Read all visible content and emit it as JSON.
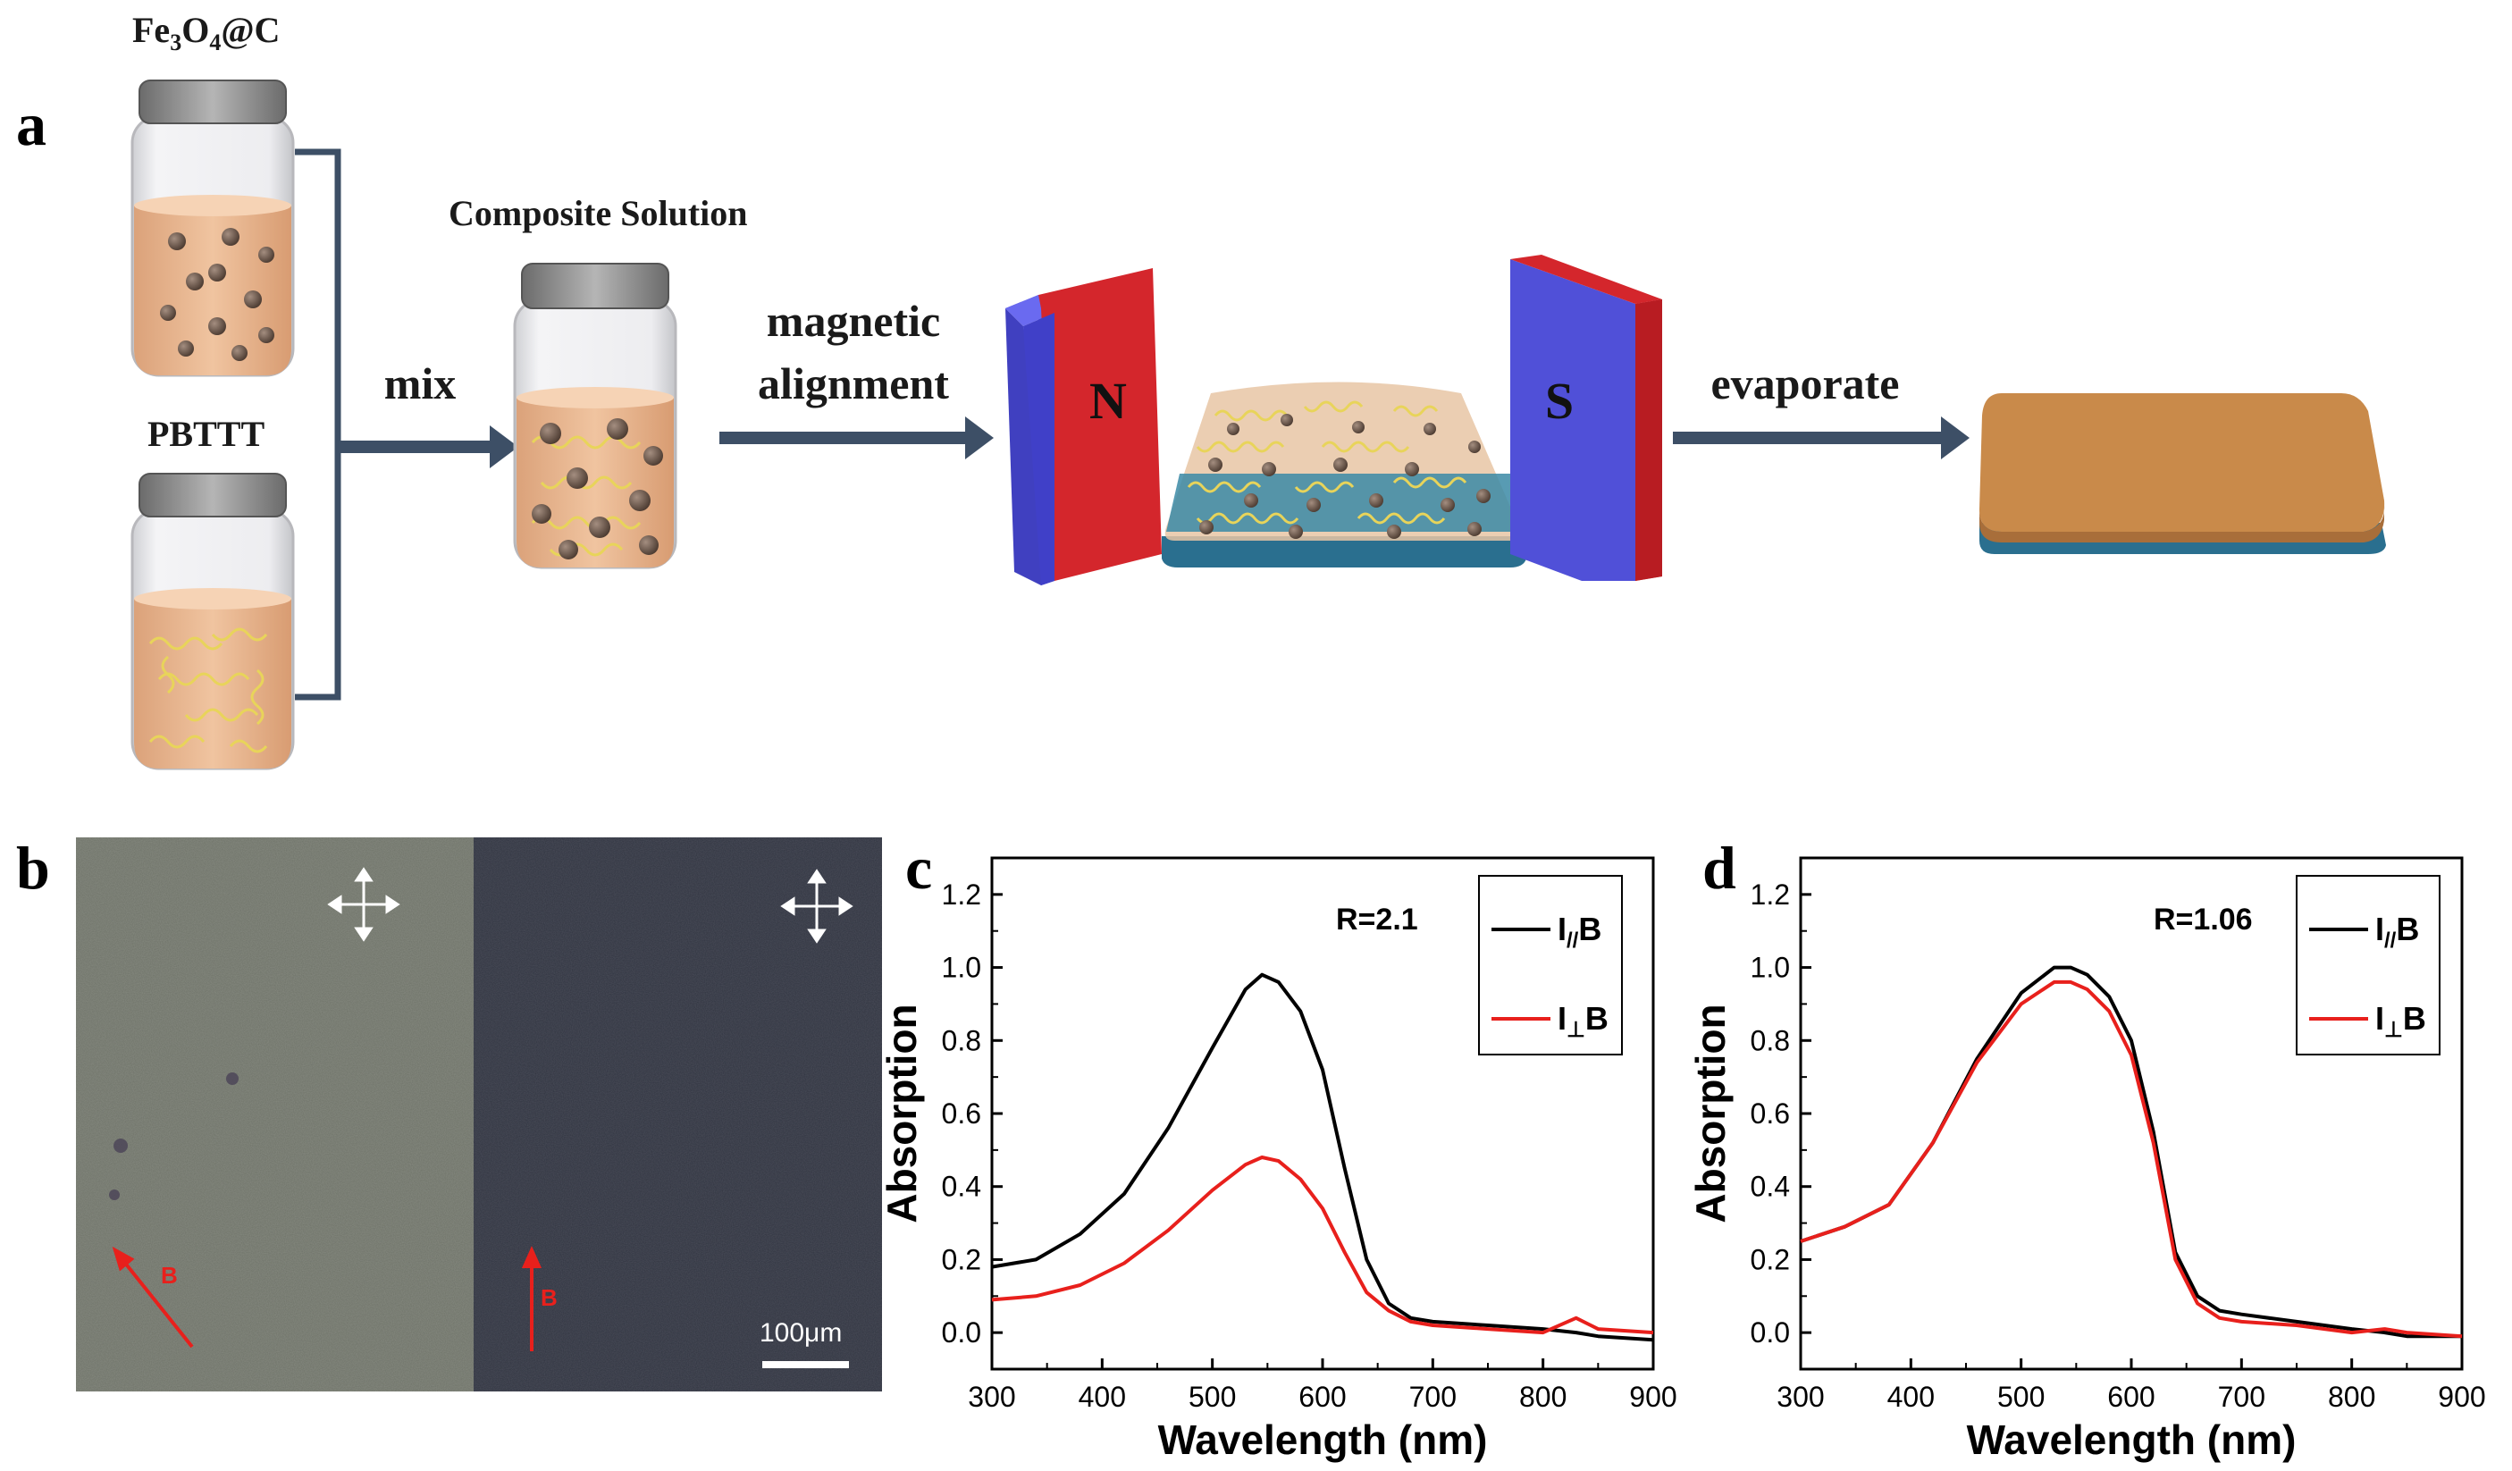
{
  "panel_a": {
    "letter": "a",
    "vial_top_label_main": "Fe",
    "vial_top_label_sub1": "3",
    "vial_top_label_mid": "O",
    "vial_top_label_sub2": "4",
    "vial_top_label_end": "@C",
    "vial_bottom_label": "PBTTT",
    "composite_label": "Composite Solution",
    "step_mix": "mix",
    "step_magnetic_1": "magnetic",
    "step_magnetic_2": "alignment",
    "magnet_n": "N",
    "magnet_s": "S",
    "step_evaporate": "evaporate",
    "colors": {
      "solution": "#e9b68a",
      "arrow": "#3d4f66",
      "magnet_red": "#d4262c",
      "magnet_blue": "#5050d8",
      "film": "#c98a4a",
      "substrate": "#2a6f8f"
    }
  },
  "panel_b": {
    "letter": "b",
    "scale_bar": "100μm",
    "field_label_left": "B",
    "field_label_right": "B"
  },
  "panel_c": {
    "letter": "c",
    "annotation": "R=2.1",
    "legend": [
      {
        "name_main": "I",
        "name_sub": "//",
        "name_end": "B",
        "color": "#000000"
      },
      {
        "name_main": "I",
        "name_sub": "⊥",
        "name_end": "B",
        "color": "#e8201c"
      }
    ],
    "xlabel": "Wavelength (nm)",
    "ylabel": "Absorption",
    "xticks": [
      "300",
      "400",
      "500",
      "600",
      "700",
      "800",
      "900"
    ],
    "yticks": [
      "0.0",
      "0.2",
      "0.4",
      "0.6",
      "0.8",
      "1.0",
      "1.2"
    ]
  },
  "panel_d": {
    "letter": "d",
    "annotation": "R=1.06",
    "legend": [
      {
        "name_main": "I",
        "name_sub": "//",
        "name_end": "B",
        "color": "#000000"
      },
      {
        "name_main": "I",
        "name_sub": "⊥",
        "name_end": "B",
        "color": "#e8201c"
      }
    ],
    "xlabel": "Wavelength (nm)",
    "ylabel": "Absorption",
    "xticks": [
      "300",
      "400",
      "500",
      "600",
      "700",
      "800",
      "900"
    ],
    "yticks": [
      "0.0",
      "0.2",
      "0.4",
      "0.6",
      "0.8",
      "1.0",
      "1.2"
    ]
  },
  "chart_data": [
    {
      "panel": "c",
      "type": "line",
      "xlabel": "Wavelength (nm)",
      "ylabel": "Absorption",
      "xlim": [
        300,
        900
      ],
      "ylim": [
        -0.1,
        1.3
      ],
      "x": [
        300,
        340,
        380,
        420,
        460,
        500,
        530,
        545,
        560,
        580,
        600,
        620,
        640,
        660,
        680,
        700,
        750,
        800,
        830,
        850,
        900
      ],
      "series": [
        {
          "name": "I//B",
          "color": "#000000",
          "values": [
            0.18,
            0.2,
            0.27,
            0.38,
            0.56,
            0.78,
            0.94,
            0.98,
            0.96,
            0.88,
            0.72,
            0.45,
            0.2,
            0.08,
            0.04,
            0.03,
            0.02,
            0.01,
            0.0,
            -0.01,
            -0.02
          ]
        },
        {
          "name": "I⊥B",
          "color": "#e8201c",
          "values": [
            0.09,
            0.1,
            0.13,
            0.19,
            0.28,
            0.39,
            0.46,
            0.48,
            0.47,
            0.42,
            0.34,
            0.22,
            0.11,
            0.06,
            0.03,
            0.02,
            0.01,
            0.0,
            0.04,
            0.01,
            0.0
          ]
        }
      ]
    },
    {
      "panel": "d",
      "type": "line",
      "xlabel": "Wavelength (nm)",
      "ylabel": "Absorption",
      "xlim": [
        300,
        900
      ],
      "ylim": [
        -0.1,
        1.3
      ],
      "x": [
        300,
        340,
        380,
        420,
        460,
        500,
        530,
        545,
        560,
        580,
        600,
        620,
        640,
        660,
        680,
        700,
        750,
        800,
        830,
        850,
        900
      ],
      "series": [
        {
          "name": "I//B",
          "color": "#000000",
          "values": [
            0.25,
            0.29,
            0.35,
            0.52,
            0.75,
            0.93,
            1.0,
            1.0,
            0.98,
            0.92,
            0.8,
            0.55,
            0.22,
            0.1,
            0.06,
            0.05,
            0.03,
            0.01,
            0.0,
            -0.01,
            -0.01
          ]
        },
        {
          "name": "I⊥B",
          "color": "#e8201c",
          "values": [
            0.25,
            0.29,
            0.35,
            0.52,
            0.74,
            0.9,
            0.96,
            0.96,
            0.94,
            0.88,
            0.76,
            0.52,
            0.2,
            0.08,
            0.04,
            0.03,
            0.02,
            0.0,
            0.01,
            0.0,
            -0.01
          ]
        }
      ]
    }
  ]
}
